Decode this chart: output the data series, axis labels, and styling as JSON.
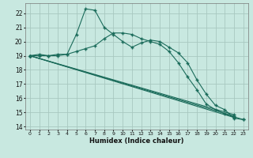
{
  "bg_color": "#c8e8e0",
  "grid_color": "#a8c8c0",
  "line_color": "#1a6b5a",
  "xlabel": "Humidex (Indice chaleur)",
  "xlim": [
    -0.5,
    23.5
  ],
  "ylim": [
    13.8,
    22.7
  ],
  "yticks": [
    14,
    15,
    16,
    17,
    18,
    19,
    20,
    21,
    22
  ],
  "xticks": [
    0,
    1,
    2,
    3,
    4,
    5,
    6,
    7,
    8,
    9,
    10,
    11,
    12,
    13,
    14,
    15,
    16,
    17,
    18,
    19,
    20,
    21,
    22,
    23
  ],
  "line1_x": [
    0,
    1,
    2,
    3,
    4,
    5,
    6,
    7,
    8,
    9,
    10,
    11,
    12,
    13,
    14,
    15,
    16,
    17,
    18,
    19,
    20,
    21,
    22,
    23
  ],
  "line1_y": [
    19.0,
    19.1,
    19.0,
    19.1,
    19.1,
    20.5,
    22.3,
    22.2,
    21.0,
    20.5,
    20.0,
    19.6,
    19.9,
    20.1,
    20.0,
    19.6,
    19.2,
    18.5,
    17.3,
    16.3,
    15.5,
    15.2,
    14.6,
    14.5
  ],
  "line2_x": [
    0,
    1,
    2,
    3,
    4,
    5,
    6,
    7,
    8,
    9,
    10,
    11,
    12,
    13,
    14,
    15,
    16,
    17,
    18,
    19,
    20,
    21,
    22,
    23
  ],
  "line2_y": [
    19.0,
    19.0,
    19.0,
    19.0,
    19.1,
    19.3,
    19.5,
    19.7,
    20.2,
    20.6,
    20.6,
    20.5,
    20.2,
    20.0,
    19.8,
    19.3,
    18.5,
    17.5,
    16.6,
    15.6,
    15.2,
    14.9,
    14.7,
    14.5
  ],
  "line3_x": [
    0,
    22
  ],
  "line3_y": [
    19.0,
    14.65
  ],
  "line4_x": [
    0,
    22
  ],
  "line4_y": [
    19.0,
    14.75
  ],
  "line5_x": [
    0,
    22
  ],
  "line5_y": [
    19.0,
    14.85
  ]
}
